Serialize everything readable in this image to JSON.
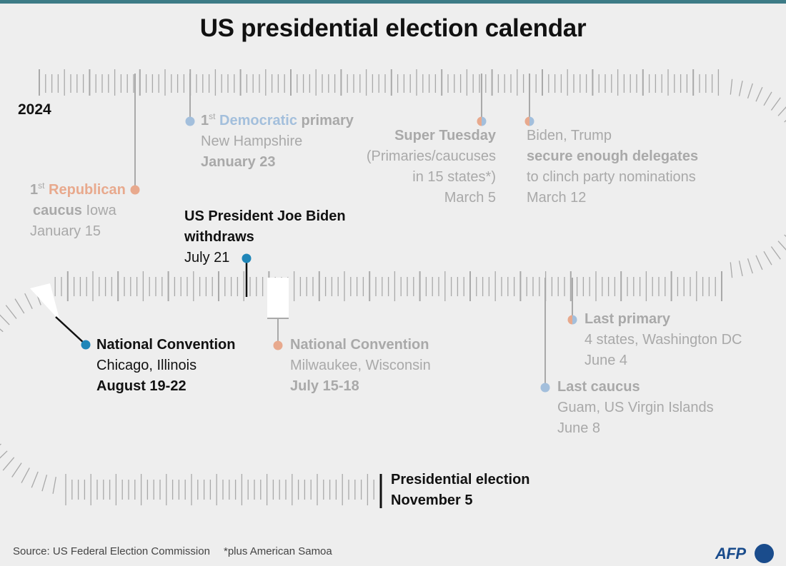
{
  "header": {
    "title": "US presidential election calendar"
  },
  "year_label": "2024",
  "colors": {
    "republican": "#e8a98d",
    "democratic": "#a3bfdc",
    "highlight": "#1f86b8",
    "muted_text": "#a9a9a9",
    "dark_text": "#111111",
    "track": "#a9a9a9"
  },
  "events": {
    "republican_caucus": {
      "ordinal": "1",
      "ordinal_suffix": "st",
      "party": "Republican",
      "kind": "caucus",
      "place": "Iowa",
      "date": "January 15"
    },
    "democratic_primary": {
      "ordinal": "1",
      "ordinal_suffix": "st",
      "party": "Democratic",
      "kind": "primary",
      "place": "New Hampshire",
      "date": "January 23"
    },
    "super_tuesday": {
      "name": "Super Tuesday",
      "line1": "(Primaries/caucuses",
      "line2": "in 15 states*)",
      "date": "March 5"
    },
    "nominations": {
      "line1": "Biden, Trump",
      "line2": "secure enough delegates",
      "line3": "to clinch party nominations",
      "date": "March 12"
    },
    "last_primary": {
      "name": "Last primary",
      "place": "4 states, Washington DC",
      "date": "June 4"
    },
    "last_caucus": {
      "name": "Last caucus",
      "place": "Guam, US Virgin Islands",
      "date": "June 8"
    },
    "rep_convention": {
      "name": "National Convention",
      "place": "Milwaukee, Wisconsin",
      "date": "July 15-18"
    },
    "biden_withdraws": {
      "line1": "US President Joe Biden",
      "line2": "withdraws",
      "date": "July 21"
    },
    "dem_convention": {
      "name": "National Convention",
      "place": "Chicago, Illinois",
      "date": "August 19-22"
    },
    "election": {
      "name": "Presidential election",
      "date": "November 5"
    }
  },
  "footer": {
    "source": "Source: US Federal Election Commission",
    "note": "*plus American Samoa",
    "logo": "AFP"
  }
}
